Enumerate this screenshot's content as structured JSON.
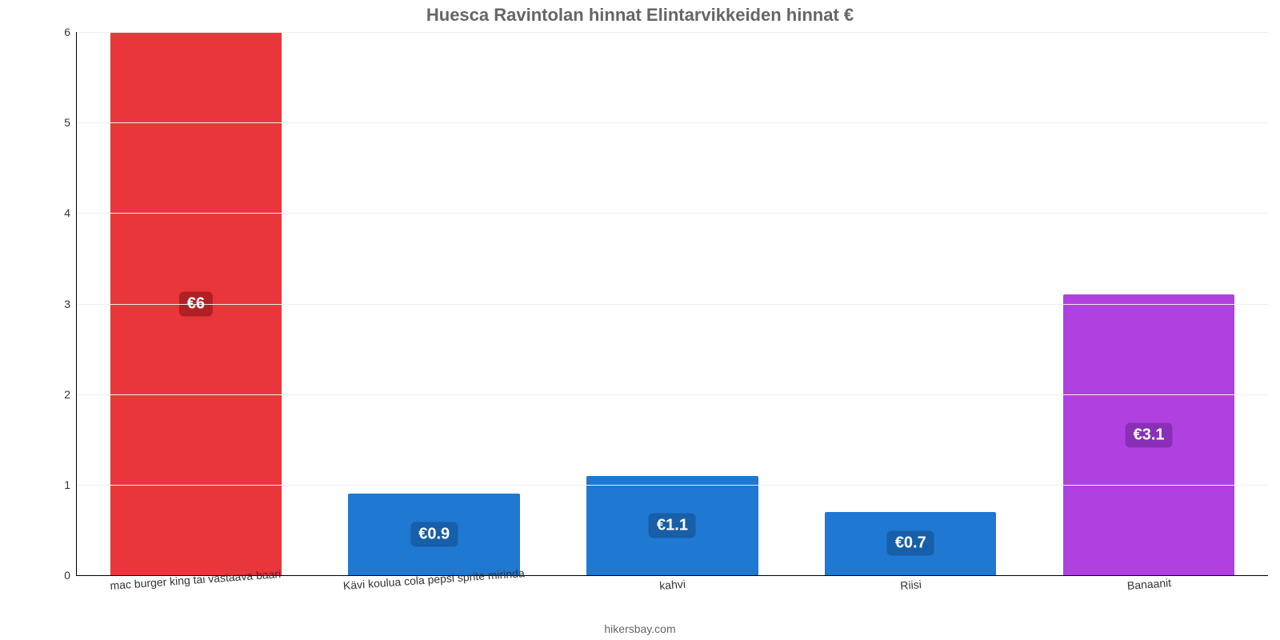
{
  "chart": {
    "type": "bar",
    "title": "Huesca Ravintolan hinnat Elintarvikkeiden hinnat €",
    "title_fontsize": 22,
    "title_color": "#666666",
    "footer": "hikersbay.com",
    "footer_color": "#666666",
    "background_color": "#ffffff",
    "axis_color": "#000000",
    "grid_color": "#eeeeee",
    "ymin": 0,
    "ymax": 6,
    "ytick_step": 1,
    "yticks": [
      "0",
      "1",
      "2",
      "3",
      "4",
      "5",
      "6"
    ],
    "label_fontsize": 14,
    "xlabel_rotate_deg": -4,
    "bar_width_pct": 72,
    "value_label_fontsize": 20,
    "badge_radius": 6,
    "categories": [
      "mac burger king tai vastaava baari",
      "Kävi koulua cola pepsi sprite mirinda",
      "kahvi",
      "Riisi",
      "Banaanit"
    ],
    "values": [
      6,
      0.9,
      1.1,
      0.7,
      3.1
    ],
    "value_labels": [
      "€6",
      "€0.9",
      "€1.1",
      "€0.7",
      "€3.1"
    ],
    "bar_colors": [
      "#e8363b",
      "#1f78d1",
      "#1f78d1",
      "#1f78d1",
      "#b041e0"
    ],
    "badge_colors": [
      "#b02125",
      "#175fa8",
      "#175fa8",
      "#175fa8",
      "#8a2fb8"
    ]
  }
}
